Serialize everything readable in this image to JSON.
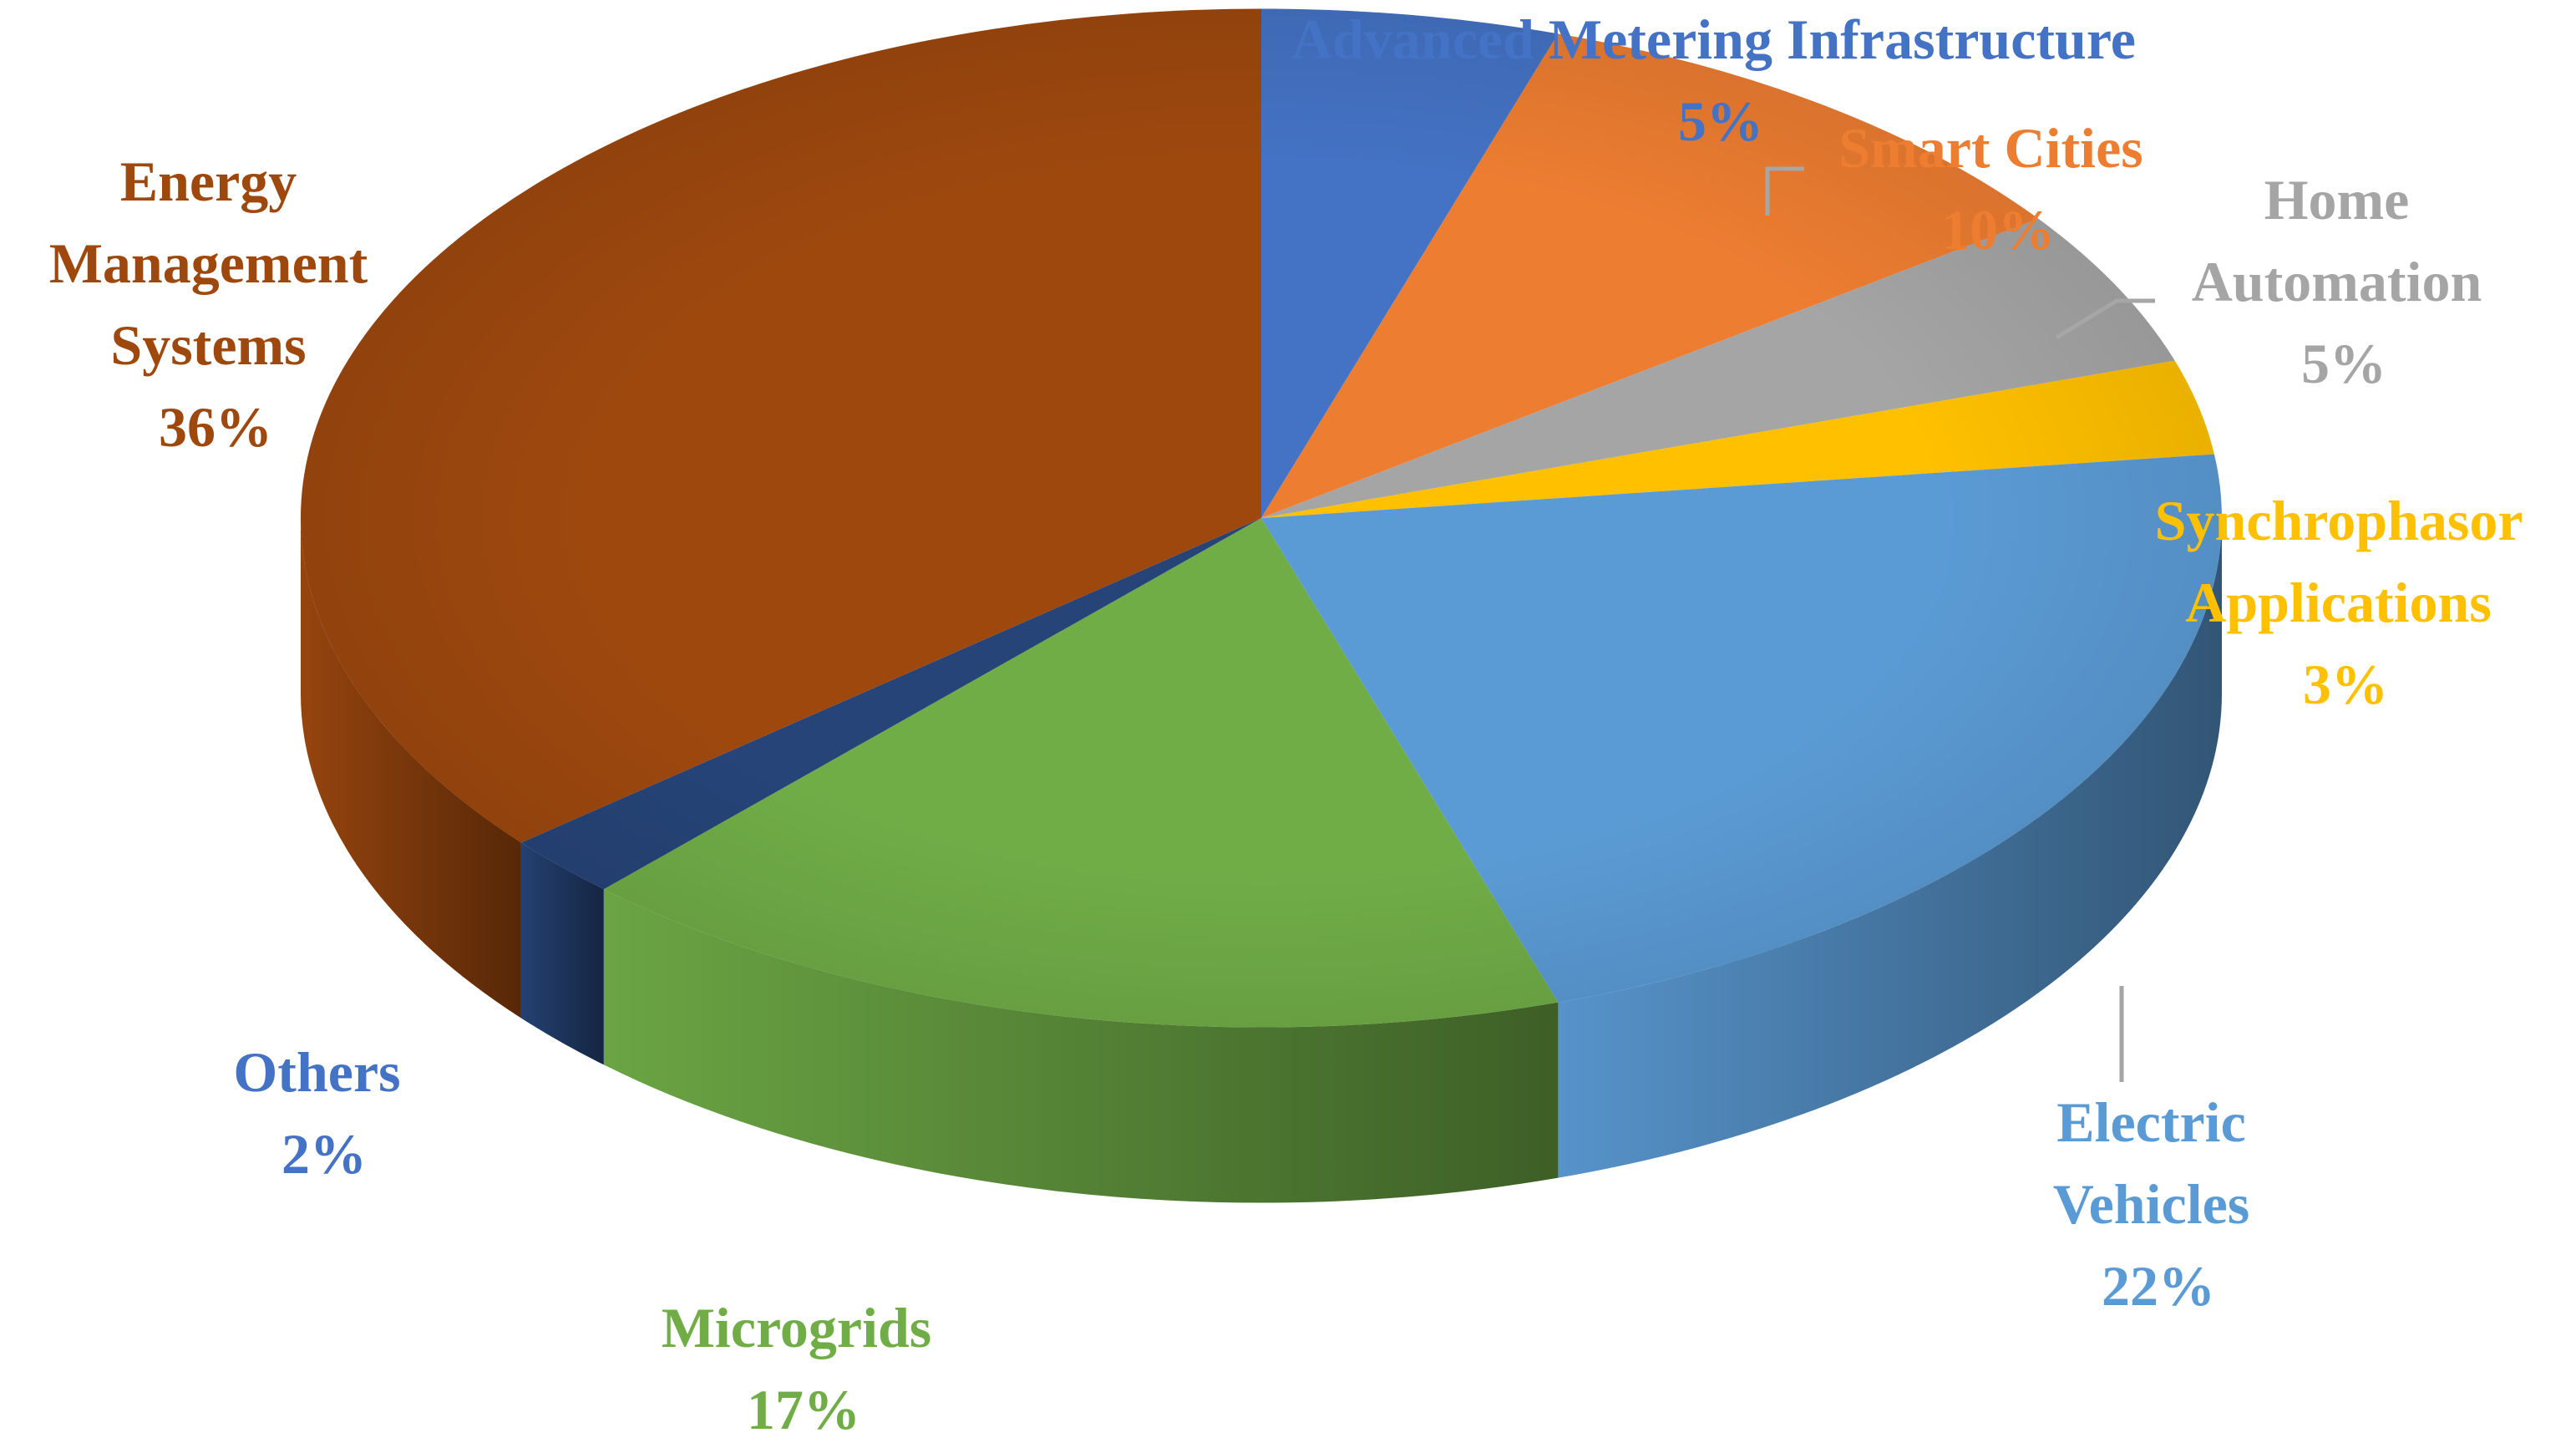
{
  "chart_data": {
    "type": "pie",
    "title": "",
    "style": "3d-tilted",
    "slices": [
      {
        "name": "Advanced Metering Infrastructure",
        "value": 5,
        "percent_label": "5%",
        "color": "#4472c4"
      },
      {
        "name": "Smart Cities",
        "value": 10,
        "percent_label": "10%",
        "color": "#ed7d31"
      },
      {
        "name": "Home Automation",
        "value": 5,
        "percent_label": "5%",
        "color": "#a5a5a5"
      },
      {
        "name": "Synchrophasor Applications",
        "value": 3,
        "percent_label": "3%",
        "color": "#ffc000"
      },
      {
        "name": "Electric Vehicles",
        "value": 22,
        "percent_label": "22%",
        "color": "#5b9bd5"
      },
      {
        "name": "Microgrids",
        "value": 17,
        "percent_label": "17%",
        "color": "#70ad47"
      },
      {
        "name": "Others",
        "value": 2,
        "percent_label": "2%",
        "color": "#264478"
      },
      {
        "name": "Energy Management Systems",
        "value": 36,
        "percent_label": "36%",
        "color": "#9e480e"
      }
    ]
  },
  "labels": {
    "ami": {
      "lines": [
        "Advanced Metering Infrastructure",
        "5%"
      ],
      "color": "#4472c4"
    },
    "smart": {
      "lines": [
        "Smart Cities",
        "10%"
      ],
      "color": "#ed7d31"
    },
    "home": {
      "lines": [
        "Home",
        "Automation",
        "5%"
      ],
      "color": "#a5a5a5"
    },
    "synch": {
      "lines": [
        "Synchrophasor",
        "Applications",
        "3%"
      ],
      "color": "#ffc000"
    },
    "ev": {
      "lines": [
        "Electric",
        "Vehicles",
        "22%"
      ],
      "color": "#5b9bd5"
    },
    "micro": {
      "lines": [
        "Microgrids",
        "17%"
      ],
      "color": "#70ad47"
    },
    "others": {
      "lines": [
        "Others",
        "2%"
      ],
      "color": "#4472c4"
    },
    "ems": {
      "lines": [
        "Energy",
        "Management",
        "Systems",
        "36%"
      ],
      "color": "#9e480e"
    }
  }
}
